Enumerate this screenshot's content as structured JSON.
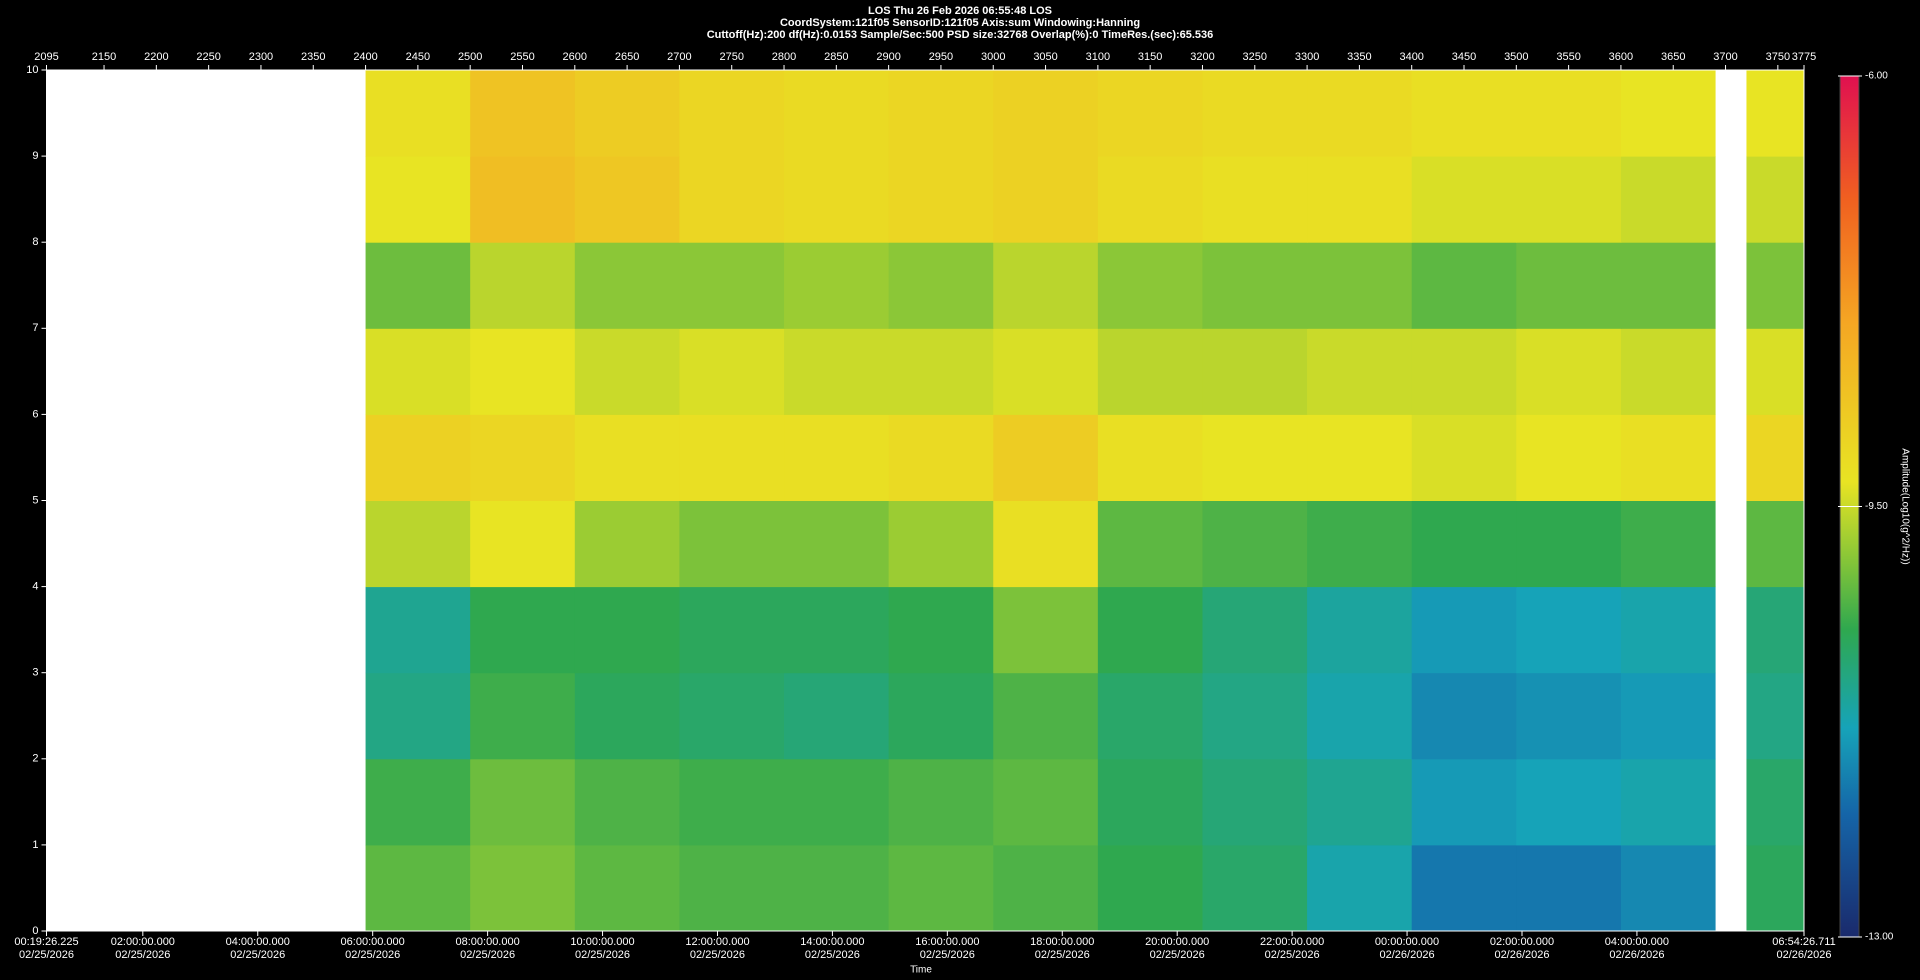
{
  "chart_data": {
    "type": "heatmap",
    "title": "LOS  Thu 26 Feb 2026 06:55:48  LOS",
    "subtitle": [
      "CoordSystem:121f05   SensorID:121f05   Axis:sum   Windowing:Hanning",
      "Cuttoff(Hz):200     df(Hz):0.0153     Sample/Sec:500     PSD size:32768     Overlap(%):0     TimeRes.(sec):65.536"
    ],
    "x_label": "Time",
    "x2lim": [
      2095,
      3775
    ],
    "x2ticks": [
      2095,
      2150,
      2200,
      2250,
      2300,
      2350,
      2400,
      2450,
      2500,
      2550,
      2600,
      2650,
      2700,
      2750,
      2800,
      2850,
      2900,
      2950,
      3000,
      3050,
      3100,
      3150,
      3200,
      3250,
      3300,
      3350,
      3400,
      3450,
      3500,
      3550,
      3600,
      3650,
      3700,
      3750,
      3775
    ],
    "xlim": [
      0.32395,
      30.90742
    ],
    "xticks": [
      {
        "value": 0.32395,
        "label": "00:19:26.225\n02/25/2026"
      },
      {
        "value": 2,
        "label": "02:00:00.000\n02/25/2026"
      },
      {
        "value": 4,
        "label": "04:00:00.000\n02/25/2026"
      },
      {
        "value": 6,
        "label": "06:00:00.000\n02/25/2026"
      },
      {
        "value": 8,
        "label": "08:00:00.000\n02/25/2026"
      },
      {
        "value": 10,
        "label": "10:00:00.000\n02/25/2026"
      },
      {
        "value": 12,
        "label": "12:00:00.000\n02/25/2026"
      },
      {
        "value": 14,
        "label": "14:00:00.000\n02/25/2026"
      },
      {
        "value": 16,
        "label": "16:00:00.000\n02/25/2026"
      },
      {
        "value": 18,
        "label": "18:00:00.000\n02/25/2026"
      },
      {
        "value": 20,
        "label": "20:00:00.000\n02/25/2026"
      },
      {
        "value": 22,
        "label": "22:00:00.000\n02/25/2026"
      },
      {
        "value": 24,
        "label": "00:00:00.000\n02/26/2026"
      },
      {
        "value": 26,
        "label": "02:00:00.000\n02/26/2026"
      },
      {
        "value": 28,
        "label": "04:00:00.000\n02/26/2026"
      },
      {
        "value": 30.90742,
        "label": "06:54:26.711\n02/26/2026"
      }
    ],
    "ylim": [
      0,
      10
    ],
    "yticks": [
      0,
      1,
      2,
      3,
      4,
      5,
      6,
      7,
      8,
      9,
      10
    ],
    "xbins": [
      2400,
      2500,
      2600,
      2700,
      2800,
      2900,
      3000,
      3100,
      3200,
      3300,
      3400,
      3500,
      3600,
      3690,
      3720,
      3775
    ],
    "ybins": [
      0,
      1,
      2,
      3,
      4,
      5,
      6,
      7,
      8,
      9,
      10
    ],
    "z": [
      [
        -10.2,
        -10.0,
        -10.2,
        -10.3,
        -10.3,
        -10.2,
        -10.3,
        -10.5,
        -10.7,
        -11.2,
        -11.8,
        -11.8,
        -11.6,
        null,
        -10.6
      ],
      [
        -10.4,
        -10.1,
        -10.3,
        -10.4,
        -10.4,
        -10.3,
        -10.2,
        -10.6,
        -10.8,
        -11.0,
        -11.4,
        -11.3,
        -11.2,
        null,
        -10.7
      ],
      [
        -10.9,
        -10.4,
        -10.6,
        -10.7,
        -10.8,
        -10.6,
        -10.3,
        -10.7,
        -10.9,
        -11.2,
        -11.6,
        -11.5,
        -11.4,
        null,
        -10.9
      ],
      [
        -11.0,
        -10.5,
        -10.5,
        -10.6,
        -10.6,
        -10.5,
        -10.0,
        -10.5,
        -10.8,
        -11.1,
        -11.4,
        -11.3,
        -11.2,
        null,
        -10.8
      ],
      [
        -9.6,
        -9.3,
        -9.8,
        -10.0,
        -10.0,
        -9.8,
        -9.2,
        -10.2,
        -10.3,
        -10.4,
        -10.5,
        -10.5,
        -10.4,
        null,
        -10.2
      ],
      [
        -8.9,
        -9.0,
        -9.2,
        -9.2,
        -9.2,
        -9.1,
        -8.8,
        -9.2,
        -9.3,
        -9.3,
        -9.4,
        -9.3,
        -9.2,
        null,
        -9.0
      ],
      [
        -9.4,
        -9.3,
        -9.5,
        -9.4,
        -9.5,
        -9.5,
        -9.4,
        -9.6,
        -9.6,
        -9.5,
        -9.5,
        -9.4,
        -9.5,
        null,
        -9.4
      ],
      [
        -10.1,
        -9.6,
        -9.9,
        -9.9,
        -9.8,
        -9.9,
        -9.6,
        -9.9,
        -10.0,
        -10.0,
        -10.2,
        -10.1,
        -10.1,
        null,
        -10.0
      ],
      [
        -9.3,
        -8.5,
        -8.7,
        -9.0,
        -9.1,
        -9.0,
        -8.9,
        -9.1,
        -9.2,
        -9.2,
        -9.4,
        -9.4,
        -9.5,
        null,
        -9.5
      ],
      [
        -9.2,
        -8.6,
        -8.8,
        -9.0,
        -9.1,
        -9.0,
        -8.9,
        -9.0,
        -9.1,
        -9.1,
        -9.2,
        -9.2,
        -9.3,
        null,
        -9.3
      ]
    ],
    "clim": [
      -13,
      -6
    ],
    "colorbar_ticks": [
      {
        "value": -6,
        "label": "-6.00"
      },
      {
        "value": -9.5,
        "label": "-9.50"
      },
      {
        "value": -13,
        "label": "-13.00"
      }
    ],
    "colorbar_label": "Amplitude(Log10(g^2/Hz))",
    "colorscale": [
      [
        -13,
        "#1a2a6c"
      ],
      [
        -12,
        "#1565a8"
      ],
      [
        -11.3,
        "#16a3b8"
      ],
      [
        -10.5,
        "#2fa84f"
      ],
      [
        -10,
        "#7cc23a"
      ],
      [
        -9.3,
        "#e8e423"
      ],
      [
        -8,
        "#f5a623"
      ],
      [
        -7,
        "#f06020"
      ],
      [
        -6,
        "#e01050"
      ]
    ],
    "background": "#ffffff"
  }
}
